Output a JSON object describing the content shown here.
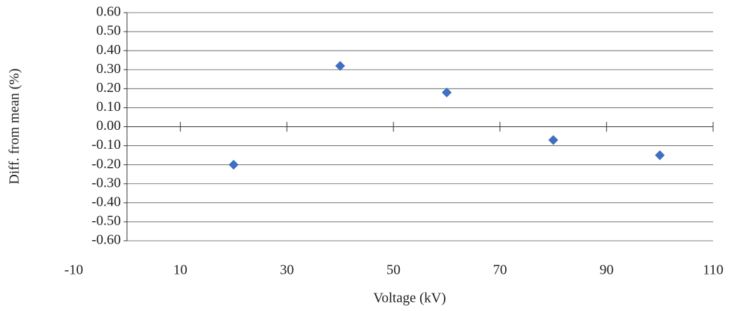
{
  "chart_data": {
    "type": "scatter",
    "xlabel": "Voltage (kV)",
    "ylabel": "Diff. from mean (%)",
    "x": [
      20,
      40,
      60,
      80,
      100
    ],
    "series": [
      {
        "color": "#3f6fc0",
        "values": [
          -0.2,
          0.32,
          0.18,
          -0.07,
          -0.15
        ]
      }
    ],
    "xlim": [
      -10,
      110
    ],
    "xticks": [
      -10,
      10,
      30,
      50,
      70,
      90,
      110
    ],
    "ylim": [
      -0.6,
      0.6
    ],
    "yticks": [
      {
        "value": -0.6,
        "label": "-0.60"
      },
      {
        "value": -0.5,
        "label": "-0.50"
      },
      {
        "value": -0.4,
        "label": "-0.40"
      },
      {
        "value": -0.3,
        "label": "-0.30"
      },
      {
        "value": -0.2,
        "label": "-0.20"
      },
      {
        "value": -0.1,
        "label": "-0.10"
      },
      {
        "value": 0,
        "label": "0.00"
      },
      {
        "value": 0.1,
        "label": "0.10"
      },
      {
        "value": 0.2,
        "label": "0.20"
      },
      {
        "value": 0.3,
        "label": "0.30"
      },
      {
        "value": 0.4,
        "label": "0.40"
      },
      {
        "value": 0.5,
        "label": "0.50"
      },
      {
        "value": 0.6,
        "label": "0.60"
      }
    ],
    "grid": true
  }
}
